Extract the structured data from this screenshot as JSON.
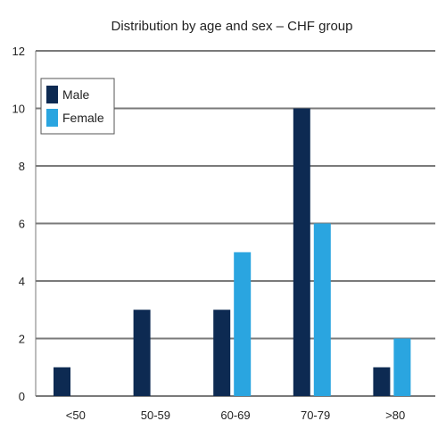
{
  "chart_data": {
    "type": "bar",
    "title": "Distribution by age and sex – CHF group",
    "xlabel": "",
    "ylabel": "",
    "categories": [
      "<50",
      "50-59",
      "60-69",
      "70-79",
      ">80"
    ],
    "series": [
      {
        "name": "Male",
        "values": [
          1,
          3,
          3,
          10,
          1
        ],
        "color": "#0d2a52"
      },
      {
        "name": "Female",
        "values": [
          0,
          0,
          5,
          6,
          2
        ],
        "color": "#2aa5e0"
      }
    ],
    "ylim": [
      0,
      12
    ],
    "yticks": [
      0,
      2,
      4,
      6,
      8,
      10,
      12
    ],
    "grid": true,
    "legend": "top-left"
  }
}
